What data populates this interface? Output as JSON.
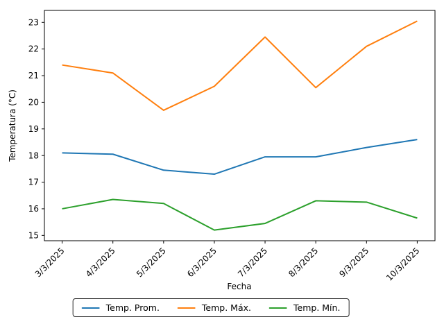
{
  "chart_data": {
    "type": "line",
    "categories": [
      "3/3/2025",
      "4/3/2025",
      "5/3/2025",
      "6/3/2025",
      "7/3/2025",
      "8/3/2025",
      "9/3/2025",
      "10/3/2025"
    ],
    "series": [
      {
        "name": "Temp. Prom.",
        "color": "#1f77b4",
        "values": [
          18.1,
          18.05,
          17.45,
          17.3,
          17.95,
          17.95,
          18.3,
          18.6
        ]
      },
      {
        "name": "Temp. Máx.",
        "color": "#ff7f0e",
        "values": [
          21.4,
          21.1,
          19.7,
          20.6,
          22.45,
          20.55,
          22.1,
          23.05
        ]
      },
      {
        "name": "Temp. Mín.",
        "color": "#2ca02c",
        "values": [
          16.0,
          16.35,
          16.2,
          15.2,
          15.45,
          16.3,
          16.25,
          15.65
        ]
      }
    ],
    "xlabel": "Fecha",
    "ylabel": "Temperatura (°C)",
    "yticks": [
      15,
      16,
      17,
      18,
      19,
      20,
      21,
      22,
      23
    ],
    "ylim": [
      14.8,
      23.45
    ],
    "grid": false,
    "legend_position": "bottom",
    "x_tick_rotation": 45,
    "line_width": 2,
    "axis_color": "#000000"
  }
}
